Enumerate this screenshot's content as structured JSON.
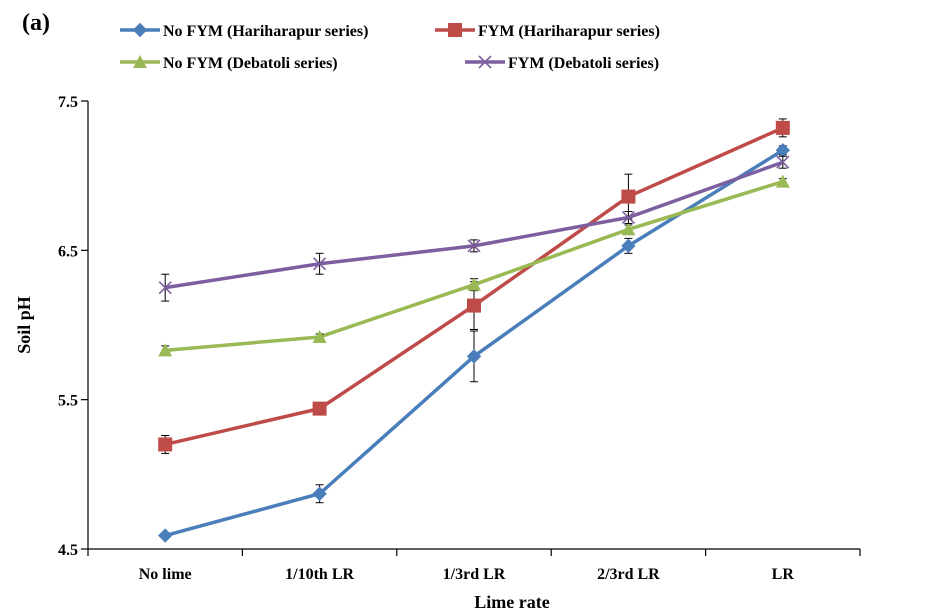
{
  "panel_label": "(a)",
  "chart_data": {
    "type": "line",
    "xlabel": "Lime rate",
    "ylabel": "Soil pH",
    "categories": [
      "No lime",
      "1/10th LR",
      "1/3rd  LR",
      "2/3rd  LR",
      "LR"
    ],
    "ylim": [
      4.5,
      7.5
    ],
    "yticks": [
      "4.5",
      "5.5",
      "6.5",
      "7.5"
    ],
    "grid": false,
    "legend_position": "top",
    "series": [
      {
        "name": "No FYM (Hariharapur series)",
        "color": "#4a7ebb",
        "marker": "diamond",
        "values": [
          4.59,
          4.87,
          5.79,
          6.53,
          7.17
        ],
        "errors": [
          0.0,
          0.06,
          0.17,
          0.05,
          0.03
        ]
      },
      {
        "name": "FYM (Hariharapur series)",
        "color": "#be4b48",
        "marker": "square",
        "values": [
          5.2,
          5.44,
          6.13,
          6.86,
          7.32
        ],
        "errors": [
          0.06,
          0.02,
          0.16,
          0.15,
          0.06
        ]
      },
      {
        "name": "No FYM (Debatoli series)",
        "color": "#98b954",
        "marker": "triangle",
        "values": [
          5.83,
          5.92,
          6.27,
          6.64,
          6.96
        ],
        "errors": [
          0.03,
          0.02,
          0.04,
          0.03,
          0.02
        ]
      },
      {
        "name": "FYM (Debatoli series)",
        "color": "#7d5fa0",
        "marker": "x",
        "values": [
          6.25,
          6.41,
          6.53,
          6.72,
          7.09
        ],
        "errors": [
          0.09,
          0.07,
          0.04,
          0.04,
          0.04
        ]
      }
    ]
  }
}
